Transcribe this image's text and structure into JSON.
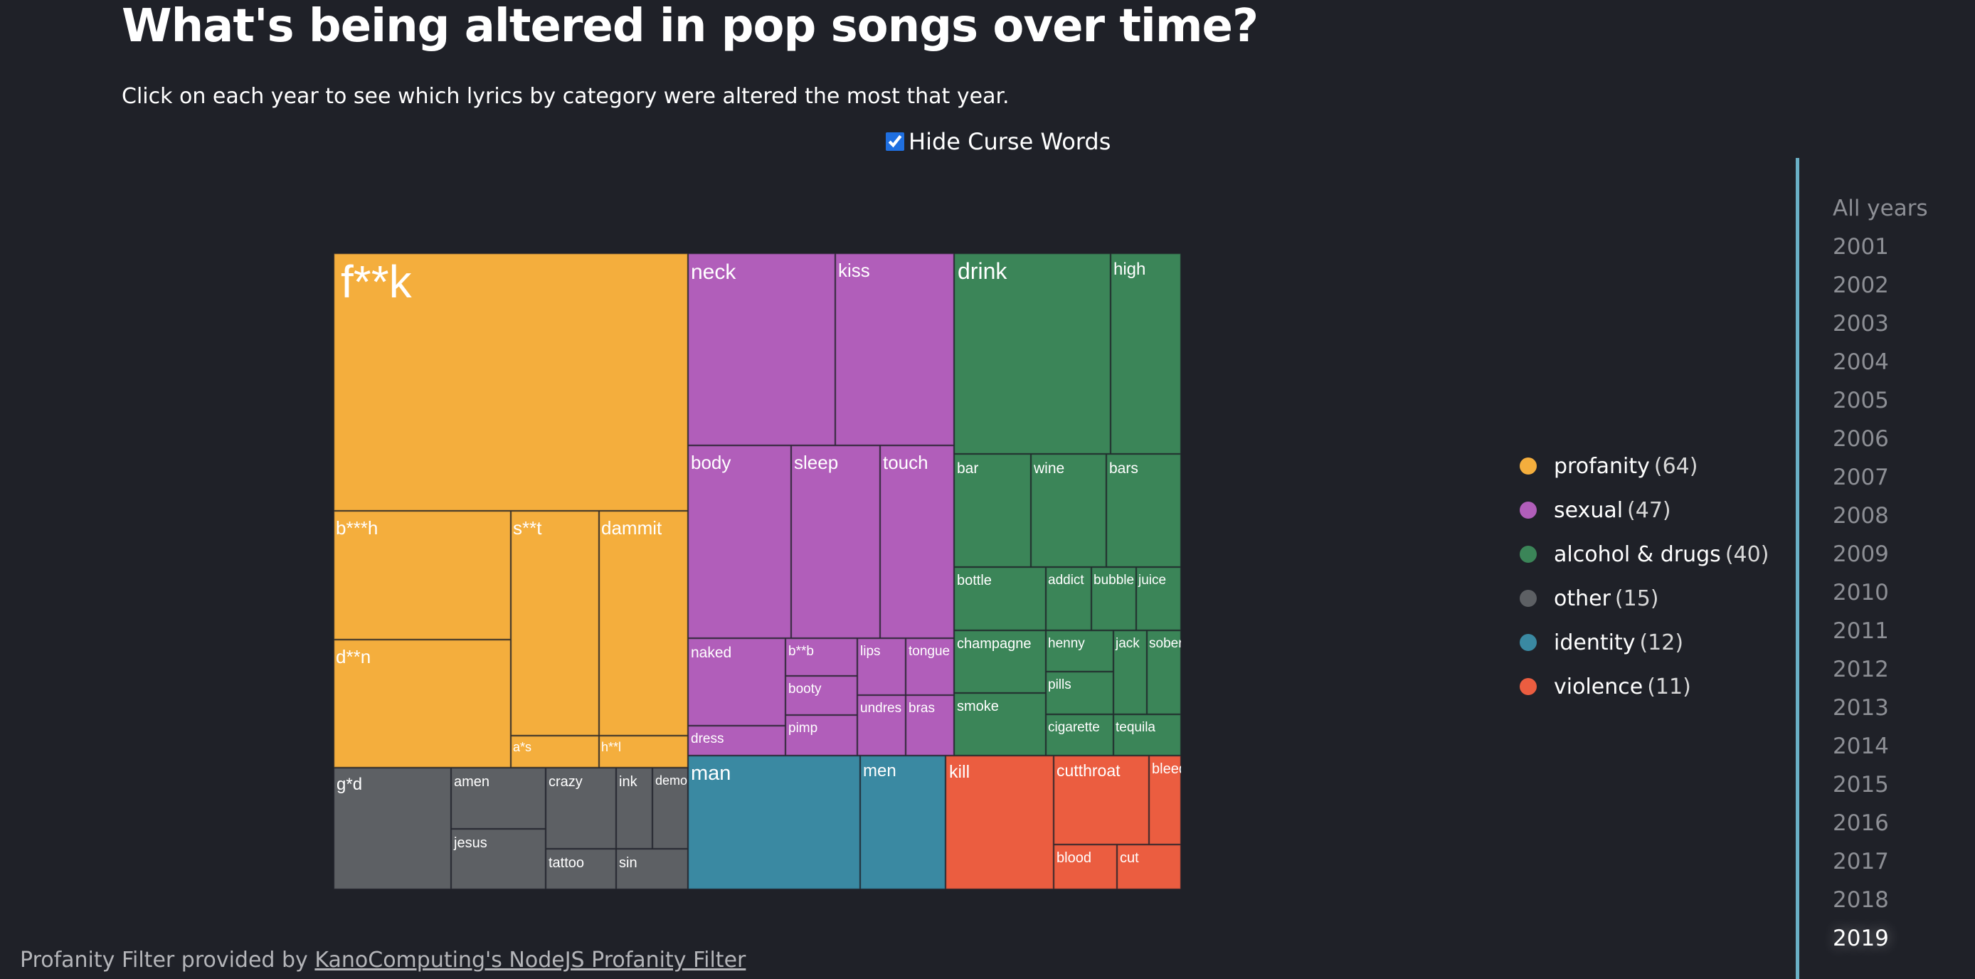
{
  "header": {
    "title": "What's being altered in pop songs over time?",
    "subtitle": "Click on each year to see which lyrics by category were altered the most that year."
  },
  "controls": {
    "hide_curse_label": "Hide Curse Words",
    "hide_curse_checked": true
  },
  "legend": [
    {
      "label": "profanity",
      "count": "(64)",
      "color": "#f4ae3d"
    },
    {
      "label": "sexual",
      "count": "(47)",
      "color": "#b15eba"
    },
    {
      "label": "alcohol & drugs",
      "count": "(40)",
      "color": "#3b8558"
    },
    {
      "label": "other",
      "count": "(15)",
      "color": "#5d6064"
    },
    {
      "label": "identity",
      "count": "(12)",
      "color": "#3a89a2"
    },
    {
      "label": "violence",
      "count": "(11)",
      "color": "#eb5d40"
    }
  ],
  "years": [
    "All years",
    "2001",
    "2002",
    "2003",
    "2004",
    "2005",
    "2006",
    "2007",
    "2008",
    "2009",
    "2010",
    "2011",
    "2012",
    "2013",
    "2014",
    "2015",
    "2016",
    "2017",
    "2018",
    "2019"
  ],
  "selected_year": "2019",
  "footer": {
    "prefix": "Profanity Filter provided by",
    "link_text": "KanoComputing's NodeJS Profanity Filter"
  },
  "chart_data": {
    "type": "treemap",
    "categories": [
      {
        "name": "profanity",
        "color": "#f4ae3d",
        "words": [
          "f**k",
          "b***h",
          "d**n",
          "s**t",
          "a*s",
          "dammit",
          "h**l"
        ]
      },
      {
        "name": "sexual",
        "color": "#b15eba",
        "words": [
          "neck",
          "kiss",
          "body",
          "sleep",
          "touch",
          "naked",
          "dress",
          "b**b",
          "booty",
          "pimp",
          "lips",
          "tongue",
          "undres",
          "bras"
        ]
      },
      {
        "name": "alcohol & drugs",
        "color": "#3b8558",
        "words": [
          "drink",
          "high",
          "bar",
          "wine",
          "bars",
          "bottle",
          "addict",
          "bubble",
          "juice",
          "champagne",
          "smoke",
          "henny",
          "pills",
          "cigarette",
          "jack",
          "sober",
          "tequila"
        ]
      },
      {
        "name": "other",
        "color": "#5d6064",
        "words": [
          "g*d",
          "amen",
          "jesus",
          "crazy",
          "tattoo",
          "ink",
          "demo",
          "sin"
        ]
      },
      {
        "name": "identity",
        "color": "#3a89a2",
        "words": [
          "man",
          "men"
        ]
      },
      {
        "name": "violence",
        "color": "#eb5d40",
        "words": [
          "kill",
          "cutthroat",
          "bleed",
          "blood",
          "cut"
        ]
      }
    ]
  }
}
